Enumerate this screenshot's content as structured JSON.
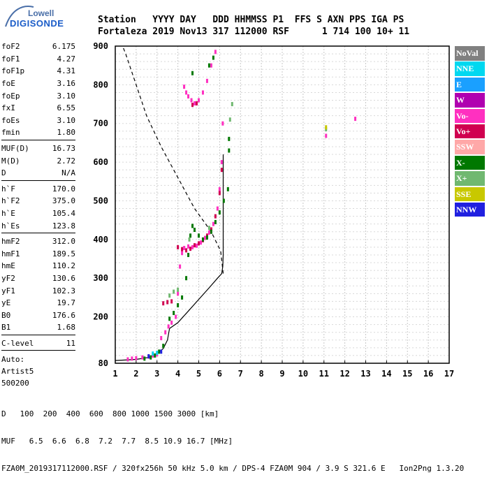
{
  "logo": {
    "line1": "Lowell",
    "line2": "DIGISONDE"
  },
  "header": {
    "line1": "Station   YYYY DAY   DDD HHMMSS P1  FFS S AXN PPS IGA PS",
    "line2": "Fortaleza 2019 Nov13 317 112000 RSF      1 714 100 10+ 11"
  },
  "params": [
    [
      [
        "foF2",
        "6.175"
      ],
      [
        "foF1",
        "4.27"
      ],
      [
        "foF1p",
        "4.31"
      ],
      [
        "foE",
        "3.16"
      ],
      [
        "foEp",
        "3.10"
      ],
      [
        "fxI",
        "6.55"
      ],
      [
        "foEs",
        "3.10"
      ],
      [
        "fmin",
        "1.80"
      ]
    ],
    [
      [
        "MUF(D)",
        "16.73"
      ],
      [
        "M(D)",
        "2.72"
      ],
      [
        "D",
        "N/A"
      ]
    ],
    [
      [
        "h`F",
        "170.0"
      ],
      [
        "h`F2",
        "375.0"
      ],
      [
        "h`E",
        "105.4"
      ],
      [
        "h`Es",
        "123.8"
      ]
    ],
    [
      [
        "hmF2",
        "312.0"
      ],
      [
        "hmF1",
        "189.5"
      ],
      [
        "hmE",
        "110.2"
      ],
      [
        "yF2",
        "130.6"
      ],
      [
        "yF1",
        "102.3"
      ],
      [
        "yE",
        "19.7"
      ],
      [
        "B0",
        "176.6"
      ],
      [
        "B1",
        "1.68"
      ]
    ],
    [
      [
        "C-level",
        "11"
      ]
    ]
  ],
  "auto": [
    "Auto:",
    "Artist5",
    "500200"
  ],
  "legend": [
    {
      "label": "NoVal",
      "color": "#808080"
    },
    {
      "label": "NNE",
      "color": "#00d8f0"
    },
    {
      "label": "E",
      "color": "#1aa0ff"
    },
    {
      "label": "W",
      "color": "#b000b0"
    },
    {
      "label": "Vo-",
      "color": "#ff30c0"
    },
    {
      "label": "Vo+",
      "color": "#d00050"
    },
    {
      "label": "SSW",
      "color": "#ffa8a8"
    },
    {
      "label": "X-",
      "color": "#007800"
    },
    {
      "label": "X+",
      "color": "#70b870"
    },
    {
      "label": "SSE",
      "color": "#c8c800"
    },
    {
      "label": "NNW",
      "color": "#2020e0"
    }
  ],
  "footer": {
    "d_label": "D",
    "d_values": "100  200  400  600  800 1000 1500 3000 [km]",
    "muf_label": "MUF",
    "muf_values": "6.5  6.6  6.8  7.2  7.7  8.5 10.9 16.7 [MHz]",
    "file_line": "FZA0M_2019317112000.RSF / 320fx256h 50 kHz 5.0 km / DPS-4 FZA0M 904 / 3.9 S 321.6 E   Ion2Png 1.3.20"
  },
  "chart_data": {
    "type": "scatter",
    "x_ticks": [
      1,
      2,
      3,
      4,
      5,
      6,
      7,
      8,
      9,
      10,
      11,
      12,
      13,
      14,
      15,
      16,
      17
    ],
    "y_ticks": [
      80,
      200,
      300,
      400,
      500,
      600,
      700,
      800,
      900
    ],
    "xlim": [
      1,
      17
    ],
    "ylim": [
      80,
      900
    ],
    "grid": true,
    "profile_solid": [
      [
        1,
        87
      ],
      [
        2,
        90
      ],
      [
        2.6,
        95
      ],
      [
        3,
        105
      ],
      [
        3.3,
        118
      ],
      [
        3.5,
        140
      ],
      [
        3.6,
        170
      ],
      [
        4,
        185
      ],
      [
        4.5,
        215
      ],
      [
        5,
        245
      ],
      [
        5.5,
        275
      ],
      [
        5.9,
        300
      ],
      [
        6.1,
        312
      ],
      [
        6.15,
        330
      ],
      [
        6.17,
        360
      ],
      [
        6.17,
        430
      ],
      [
        6.17,
        520
      ],
      [
        6.17,
        620
      ]
    ],
    "profile_dashed": [
      [
        6.17,
        312
      ],
      [
        6.05,
        370
      ],
      [
        5.6,
        420
      ],
      [
        4.8,
        480
      ],
      [
        4.0,
        560
      ],
      [
        3.2,
        640
      ],
      [
        2.5,
        720
      ],
      [
        2.0,
        800
      ],
      [
        1.5,
        880
      ],
      [
        1.35,
        900
      ]
    ],
    "series": [
      {
        "name": "Vo-",
        "color": "#ff30c0",
        "points": [
          [
            1.6,
            90
          ],
          [
            1.8,
            92
          ],
          [
            2.0,
            93
          ],
          [
            2.3,
            95
          ],
          [
            2.6,
            97
          ],
          [
            2.8,
            100
          ],
          [
            3.0,
            103
          ],
          [
            3.2,
            145
          ],
          [
            3.4,
            160
          ],
          [
            3.55,
            175
          ],
          [
            3.7,
            185
          ],
          [
            3.9,
            200
          ],
          [
            4.0,
            260
          ],
          [
            4.1,
            330
          ],
          [
            4.2,
            365
          ],
          [
            4.3,
            378
          ],
          [
            4.5,
            382
          ],
          [
            4.7,
            380
          ],
          [
            4.9,
            384
          ],
          [
            5.1,
            392
          ],
          [
            5.3,
            404
          ],
          [
            5.5,
            418
          ],
          [
            5.7,
            440
          ],
          [
            5.9,
            480
          ],
          [
            6.0,
            530
          ],
          [
            6.1,
            600
          ],
          [
            6.15,
            700
          ],
          [
            4.3,
            795
          ],
          [
            4.4,
            780
          ],
          [
            4.5,
            770
          ],
          [
            4.65,
            760
          ],
          [
            4.8,
            752
          ],
          [
            5.0,
            760
          ],
          [
            5.2,
            780
          ],
          [
            5.4,
            810
          ],
          [
            5.6,
            850
          ],
          [
            5.8,
            885
          ],
          [
            12.5,
            712
          ],
          [
            11.1,
            668
          ]
        ]
      },
      {
        "name": "Vo+",
        "color": "#d00050",
        "points": [
          [
            3.3,
            235
          ],
          [
            3.5,
            238
          ],
          [
            3.7,
            240
          ],
          [
            4.0,
            380
          ],
          [
            4.2,
            375
          ],
          [
            4.4,
            372
          ],
          [
            4.6,
            376
          ],
          [
            4.8,
            385
          ],
          [
            5.0,
            390
          ],
          [
            5.2,
            398
          ],
          [
            5.4,
            410
          ],
          [
            5.6,
            426
          ],
          [
            5.8,
            460
          ],
          [
            6.0,
            520
          ],
          [
            6.1,
            580
          ],
          [
            4.7,
            748
          ],
          [
            4.9,
            752
          ]
        ]
      },
      {
        "name": "X-",
        "color": "#007800",
        "points": [
          [
            2.4,
            92
          ],
          [
            2.7,
            95
          ],
          [
            2.9,
            100
          ],
          [
            3.1,
            110
          ],
          [
            3.3,
            125
          ],
          [
            3.6,
            195
          ],
          [
            3.8,
            210
          ],
          [
            4.0,
            230
          ],
          [
            4.2,
            250
          ],
          [
            4.4,
            300
          ],
          [
            4.5,
            360
          ],
          [
            4.6,
            410
          ],
          [
            4.7,
            435
          ],
          [
            4.8,
            425
          ],
          [
            5.0,
            410
          ],
          [
            5.2,
            400
          ],
          [
            5.4,
            405
          ],
          [
            5.6,
            420
          ],
          [
            5.8,
            445
          ],
          [
            6.0,
            470
          ],
          [
            6.2,
            500
          ],
          [
            6.4,
            530
          ],
          [
            6.45,
            630
          ],
          [
            6.45,
            660
          ],
          [
            4.7,
            830
          ],
          [
            5.5,
            850
          ],
          [
            5.7,
            870
          ]
        ]
      },
      {
        "name": "X+",
        "color": "#70b870",
        "points": [
          [
            3.6,
            255
          ],
          [
            3.8,
            265
          ],
          [
            4.0,
            270
          ],
          [
            4.55,
            400
          ],
          [
            5.5,
            430
          ],
          [
            6.5,
            710
          ],
          [
            6.6,
            750
          ],
          [
            11.1,
            685
          ]
        ]
      },
      {
        "name": "SSE",
        "color": "#c8c800",
        "points": [
          [
            11.1,
            690
          ]
        ]
      },
      {
        "name": "NNE",
        "color": "#00d8f0",
        "points": [
          [
            2.8,
            105
          ],
          [
            3.0,
            107
          ]
        ]
      },
      {
        "name": "NNW",
        "color": "#2020e0",
        "points": [
          [
            2.6,
            98
          ],
          [
            3.2,
            110
          ]
        ]
      }
    ]
  }
}
